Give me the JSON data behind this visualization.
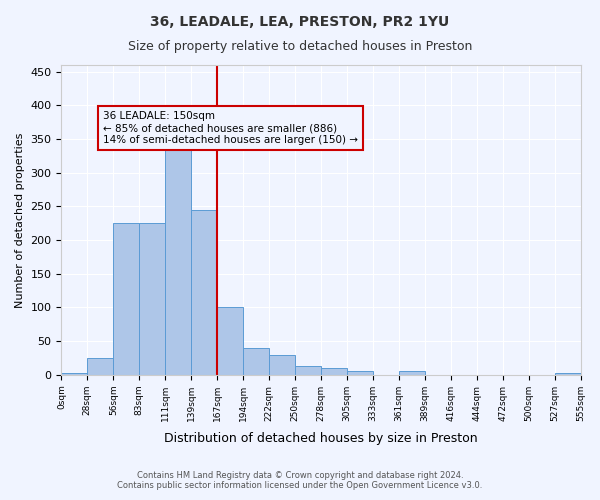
{
  "title1": "36, LEADALE, LEA, PRESTON, PR2 1YU",
  "title2": "Size of property relative to detached houses in Preston",
  "xlabel": "Distribution of detached houses by size in Preston",
  "ylabel": "Number of detached properties",
  "annotation_line1": "36 LEADALE: 150sqm",
  "annotation_line2": "← 85% of detached houses are smaller (886)",
  "annotation_line3": "14% of semi-detached houses are larger (150) →",
  "footer1": "Contains HM Land Registry data © Crown copyright and database right 2024.",
  "footer2": "Contains public sector information licensed under the Open Government Licence v3.0.",
  "bar_values": [
    3,
    25,
    225,
    225,
    345,
    245,
    100,
    40,
    30,
    13,
    10,
    5,
    0,
    5,
    0,
    0,
    0,
    0,
    0,
    2
  ],
  "tick_labels": [
    "0sqm",
    "28sqm",
    "56sqm",
    "83sqm",
    "111sqm",
    "139sqm",
    "167sqm",
    "194sqm",
    "222sqm",
    "250sqm",
    "278sqm",
    "305sqm",
    "333sqm",
    "361sqm",
    "389sqm",
    "416sqm",
    "444sqm",
    "472sqm",
    "500sqm",
    "527sqm",
    "555sqm"
  ],
  "bar_color": "#AEC6E8",
  "bar_edge_color": "#5B9BD5",
  "vline_x": 5,
  "vline_color": "#CC0000",
  "annotation_box_color": "#CC0000",
  "ylim": [
    0,
    460
  ],
  "background_color": "#F0F4FF",
  "grid_color": "#FFFFFF"
}
